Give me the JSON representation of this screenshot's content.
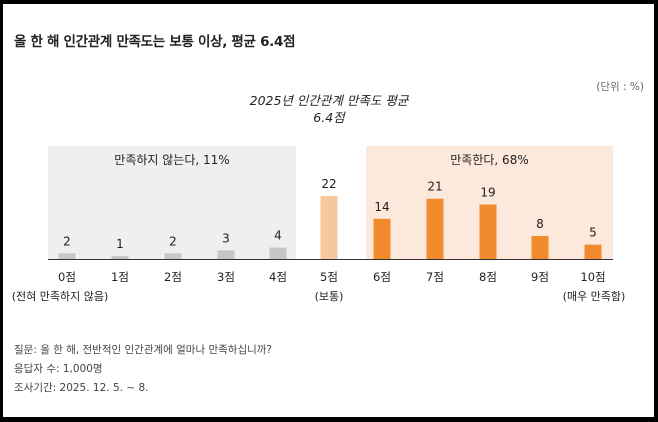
{
  "page": {
    "title": "올 한 해 인간관계 만족도는 보통 이상, 평균 6.4점",
    "unit": "(단위 : %)"
  },
  "colors": {
    "unsatisfied_bg": "#efefef",
    "satisfied_bg": "#fde9dc",
    "gray_bar": "#c7c7c7",
    "neutral_bar": "#f9c79e",
    "orange_bar": "#f28b2e",
    "baseline": "#333333"
  },
  "chart_data": {
    "type": "bar",
    "title": "2025년 인간관계 만족도 평균",
    "subtitle": "6.4점",
    "categories": [
      "0점",
      "1점",
      "2점",
      "3점",
      "4점",
      "5점",
      "6점",
      "7점",
      "8점",
      "9점",
      "10점"
    ],
    "category_notes": {
      "0": "(전혀 만족하지 않음)",
      "5": "(보통)",
      "10": "(매우 만족함)"
    },
    "values": [
      2,
      1,
      2,
      3,
      4,
      22,
      14,
      21,
      19,
      8,
      5
    ],
    "ylim": [
      0,
      25
    ],
    "groups": [
      {
        "label": "만족하지 않는다, 11%",
        "from": 0,
        "to": 4
      },
      {
        "label": "만족한다, 68%",
        "from": 6,
        "to": 10
      }
    ],
    "grid": false,
    "legend": "none"
  },
  "footer": {
    "question": "질문: 올 한 해, 전반적인 인간관계에 얼마나 만족하십니까?",
    "respondents": "응답자 수: 1,000명",
    "period": "조사기간: 2025. 12. 5. ~ 8."
  }
}
